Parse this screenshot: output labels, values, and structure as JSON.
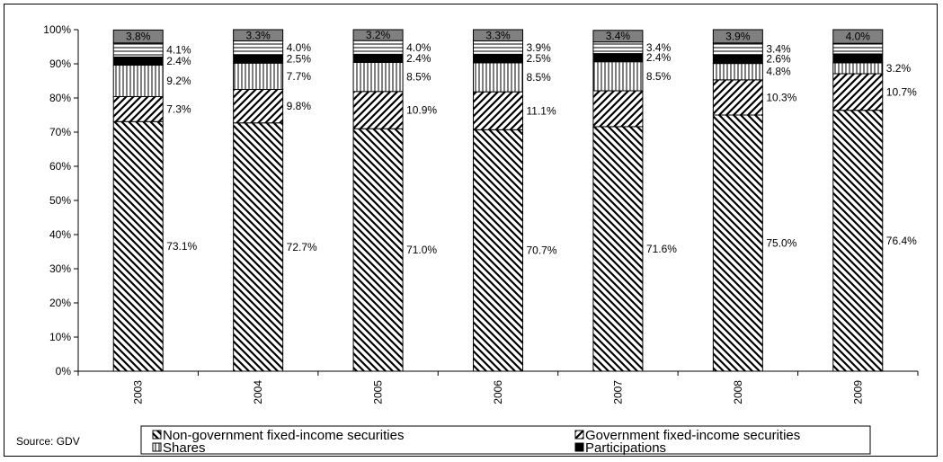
{
  "chart_data": {
    "type": "bar",
    "stacked": true,
    "categories": [
      "2003",
      "2004",
      "2005",
      "2006",
      "2007",
      "2008",
      "2009"
    ],
    "ylim": [
      0,
      100
    ],
    "ytick_labels": [
      "0%",
      "10%",
      "20%",
      "30%",
      "40%",
      "50%",
      "60%",
      "70%",
      "80%",
      "90%",
      "100%"
    ],
    "series": [
      {
        "name": "Non-government fixed-income securities",
        "values": [
          73.1,
          72.7,
          71.0,
          70.7,
          71.6,
          75.0,
          76.4
        ],
        "labels": [
          "73.1%",
          "72.7%",
          "71.0%",
          "70.7%",
          "71.6%",
          "75.0%",
          "76.4%"
        ],
        "pattern": "diag-down"
      },
      {
        "name": "Government fixed-income securities",
        "values": [
          7.3,
          9.8,
          10.9,
          11.1,
          10.5,
          10.3,
          10.7
        ],
        "labels": [
          "7.3%",
          "9.8%",
          "10.9%",
          "11.1%",
          "",
          "10.3%",
          "10.7%"
        ],
        "pattern": "diag-up"
      },
      {
        "name": "Shares",
        "values": [
          9.2,
          7.7,
          8.5,
          8.5,
          8.5,
          4.8,
          3.2
        ],
        "labels": [
          "9.2%",
          "7.7%",
          "8.5%",
          "8.5%",
          "8.5%",
          "4.8%",
          "3.2%"
        ],
        "pattern": "vertical"
      },
      {
        "name": "Participations",
        "values": [
          2.4,
          2.5,
          2.4,
          2.5,
          2.4,
          2.6,
          2.6
        ],
        "labels": [
          "2.4%",
          "2.5%",
          "2.4%",
          "2.5%",
          "2.4%",
          "2.6%",
          ""
        ],
        "pattern": "solid-black"
      },
      {
        "name": "",
        "values": [
          4.1,
          4.0,
          4.0,
          3.9,
          3.4,
          3.4,
          3.1
        ],
        "labels": [
          "4.1%",
          "4.0%",
          "4.0%",
          "3.9%",
          "3.4%",
          "3.4%",
          ""
        ],
        "pattern": "horizontal"
      },
      {
        "name": "",
        "values": [
          3.8,
          3.3,
          3.2,
          3.3,
          3.4,
          3.9,
          4.0
        ],
        "labels": [
          "3.8%",
          "3.3%",
          "3.2%",
          "3.3%",
          "3.4%",
          "3.9%",
          "4.0%"
        ],
        "pattern": "gray"
      }
    ],
    "legend": [
      "Non-government fixed-income securities",
      "Government fixed-income securities",
      "Shares",
      "Participations"
    ],
    "legend_placement": "bottom",
    "grid": false,
    "source": "Source: GDV"
  }
}
